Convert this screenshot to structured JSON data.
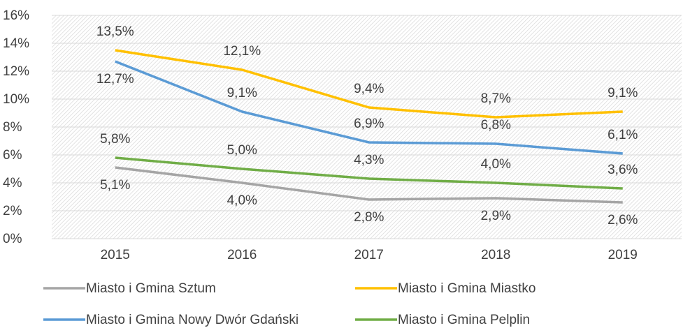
{
  "chart_data": {
    "type": "line",
    "categories": [
      "2015",
      "2016",
      "2017",
      "2018",
      "2019"
    ],
    "series": [
      {
        "name": "Miasto i Gmina Sztum",
        "color": "#a5a5a5",
        "values": [
          5.1,
          4.0,
          2.8,
          2.9,
          2.6
        ],
        "value_labels": [
          "5,1%",
          "4,0%",
          "2,8%",
          "2,9%",
          "2,6%"
        ]
      },
      {
        "name": "Miasto i Gmina Miastko",
        "color": "#ffc000",
        "values": [
          13.5,
          12.1,
          9.4,
          8.7,
          9.1
        ],
        "value_labels": [
          "13,5%",
          "12,1%",
          "9,4%",
          "8,7%",
          "9,1%"
        ]
      },
      {
        "name": "Miasto i Gmina Nowy Dwór Gdański",
        "color": "#5b9bd5",
        "values": [
          12.7,
          9.1,
          6.9,
          6.8,
          6.1
        ],
        "value_labels": [
          "12,7%",
          "9,1%",
          "6,9%",
          "6,8%",
          "6,1%"
        ]
      },
      {
        "name": "Miasto i Gmina Pelplin",
        "color": "#70ad47",
        "values": [
          5.8,
          5.0,
          4.3,
          4.0,
          3.6
        ],
        "value_labels": [
          "5,8%",
          "5,0%",
          "4,3%",
          "4,0%",
          "3,6%"
        ]
      }
    ],
    "ylim": [
      0,
      16
    ],
    "yticks": [
      {
        "value": 0,
        "label": "0%"
      },
      {
        "value": 2,
        "label": "2%"
      },
      {
        "value": 4,
        "label": "4%"
      },
      {
        "value": 6,
        "label": "6%"
      },
      {
        "value": 8,
        "label": "8%"
      },
      {
        "value": 10,
        "label": "10%"
      },
      {
        "value": 12,
        "label": "12%"
      },
      {
        "value": 14,
        "label": "14%"
      },
      {
        "value": 16,
        "label": "16%"
      }
    ],
    "grid": true,
    "legend": "bottom"
  }
}
